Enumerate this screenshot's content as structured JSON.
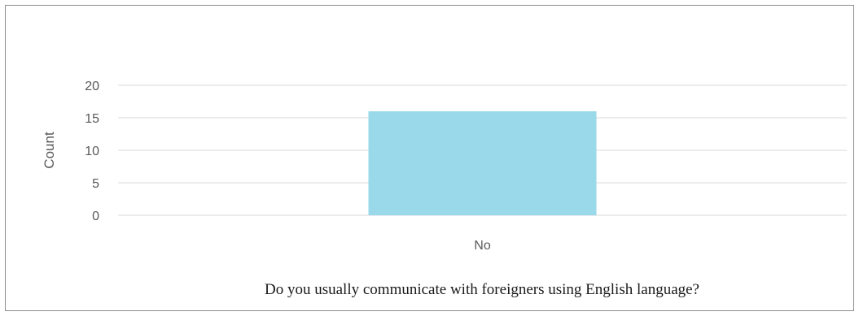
{
  "chart_data": {
    "type": "bar",
    "categories": [
      "No"
    ],
    "series": [
      {
        "values": [
          16
        ]
      }
    ],
    "xlabel": "Do you usually communicate with foreigners using English language?",
    "ylabel": "Count",
    "ylim": [
      0,
      20
    ],
    "yticks": [
      0,
      5,
      10,
      15,
      20
    ],
    "grid": true,
    "legend": "none",
    "colors": {
      "bar": "#99d9ea",
      "grid": "#d9d9d9",
      "border": "#8c8c8c",
      "tick_text": "#595959",
      "title_text": "#1a1a1a"
    }
  }
}
